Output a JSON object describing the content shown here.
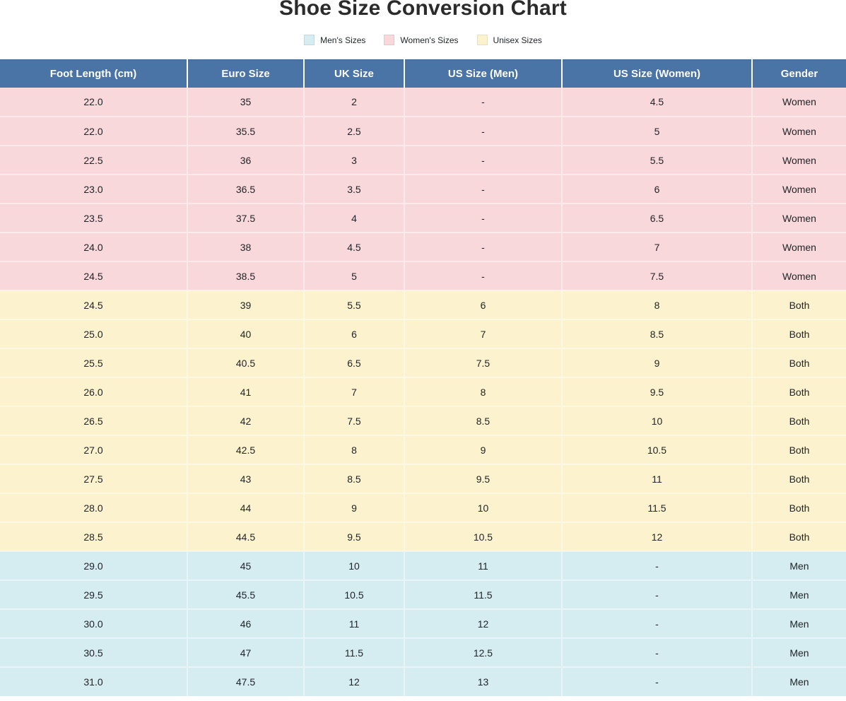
{
  "title": "Shoe Size Conversion Chart",
  "legend": {
    "items": [
      {
        "name": "mens-sizes",
        "label": "Men's Sizes",
        "color": "#d5ecf1"
      },
      {
        "name": "womens-sizes",
        "label": "Women's Sizes",
        "color": "#f8d8db"
      },
      {
        "name": "unisex-sizes",
        "label": "Unisex Sizes",
        "color": "#fcf2cd"
      }
    ]
  },
  "colors": {
    "header_bg": "#4a73a6",
    "header_text": "#ffffff",
    "women_row": "#f8d8db",
    "both_row": "#fcf2cd",
    "men_row": "#d5ecf1"
  },
  "chart_data": {
    "type": "table",
    "title": "Shoe Size Conversion Chart",
    "columns": [
      "Foot Length (cm)",
      "Euro Size",
      "UK Size",
      "US Size (Men)",
      "US Size (Women)",
      "Gender"
    ],
    "rows": [
      {
        "group": "women",
        "cells": [
          "22.0",
          "35",
          "2",
          "-",
          "4.5",
          "Women"
        ]
      },
      {
        "group": "women",
        "cells": [
          "22.0",
          "35.5",
          "2.5",
          "-",
          "5",
          "Women"
        ]
      },
      {
        "group": "women",
        "cells": [
          "22.5",
          "36",
          "3",
          "-",
          "5.5",
          "Women"
        ]
      },
      {
        "group": "women",
        "cells": [
          "23.0",
          "36.5",
          "3.5",
          "-",
          "6",
          "Women"
        ]
      },
      {
        "group": "women",
        "cells": [
          "23.5",
          "37.5",
          "4",
          "-",
          "6.5",
          "Women"
        ]
      },
      {
        "group": "women",
        "cells": [
          "24.0",
          "38",
          "4.5",
          "-",
          "7",
          "Women"
        ]
      },
      {
        "group": "women",
        "cells": [
          "24.5",
          "38.5",
          "5",
          "-",
          "7.5",
          "Women"
        ]
      },
      {
        "group": "both",
        "cells": [
          "24.5",
          "39",
          "5.5",
          "6",
          "8",
          "Both"
        ]
      },
      {
        "group": "both",
        "cells": [
          "25.0",
          "40",
          "6",
          "7",
          "8.5",
          "Both"
        ]
      },
      {
        "group": "both",
        "cells": [
          "25.5",
          "40.5",
          "6.5",
          "7.5",
          "9",
          "Both"
        ]
      },
      {
        "group": "both",
        "cells": [
          "26.0",
          "41",
          "7",
          "8",
          "9.5",
          "Both"
        ]
      },
      {
        "group": "both",
        "cells": [
          "26.5",
          "42",
          "7.5",
          "8.5",
          "10",
          "Both"
        ]
      },
      {
        "group": "both",
        "cells": [
          "27.0",
          "42.5",
          "8",
          "9",
          "10.5",
          "Both"
        ]
      },
      {
        "group": "both",
        "cells": [
          "27.5",
          "43",
          "8.5",
          "9.5",
          "11",
          "Both"
        ]
      },
      {
        "group": "both",
        "cells": [
          "28.0",
          "44",
          "9",
          "10",
          "11.5",
          "Both"
        ]
      },
      {
        "group": "both",
        "cells": [
          "28.5",
          "44.5",
          "9.5",
          "10.5",
          "12",
          "Both"
        ]
      },
      {
        "group": "men",
        "cells": [
          "29.0",
          "45",
          "10",
          "11",
          "-",
          "Men"
        ]
      },
      {
        "group": "men",
        "cells": [
          "29.5",
          "45.5",
          "10.5",
          "11.5",
          "-",
          "Men"
        ]
      },
      {
        "group": "men",
        "cells": [
          "30.0",
          "46",
          "11",
          "12",
          "-",
          "Men"
        ]
      },
      {
        "group": "men",
        "cells": [
          "30.5",
          "47",
          "11.5",
          "12.5",
          "-",
          "Men"
        ]
      },
      {
        "group": "men",
        "cells": [
          "31.0",
          "47.5",
          "12",
          "13",
          "-",
          "Men"
        ]
      }
    ]
  }
}
